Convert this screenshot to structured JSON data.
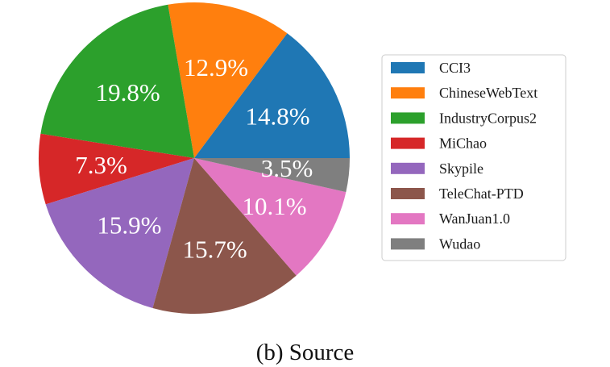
{
  "caption": "(b) Source",
  "chart_data": {
    "type": "pie",
    "start_angle_deg": 0,
    "direction": "counterclockwise",
    "legend_position": "right",
    "slices": [
      {
        "name": "CCI3",
        "value": 14.8,
        "label": "14.8%",
        "color": "#1f77b4"
      },
      {
        "name": "ChineseWebText",
        "value": 12.9,
        "label": "12.9%",
        "color": "#ff7f0e"
      },
      {
        "name": "IndustryCorpus2",
        "value": 19.8,
        "label": "19.8%",
        "color": "#2ca02c"
      },
      {
        "name": "MiChao",
        "value": 7.3,
        "label": "7.3%",
        "color": "#d62728"
      },
      {
        "name": "Skypile",
        "value": 15.9,
        "label": "15.9%",
        "color": "#9467bd"
      },
      {
        "name": "TeleChat-PTD",
        "value": 15.7,
        "label": "15.7%",
        "color": "#8c564b"
      },
      {
        "name": "WanJuan1.0",
        "value": 10.1,
        "label": "10.1%",
        "color": "#e377c2"
      },
      {
        "name": "Wudao",
        "value": 3.5,
        "label": "3.5%",
        "color": "#7f7f7f"
      }
    ]
  }
}
